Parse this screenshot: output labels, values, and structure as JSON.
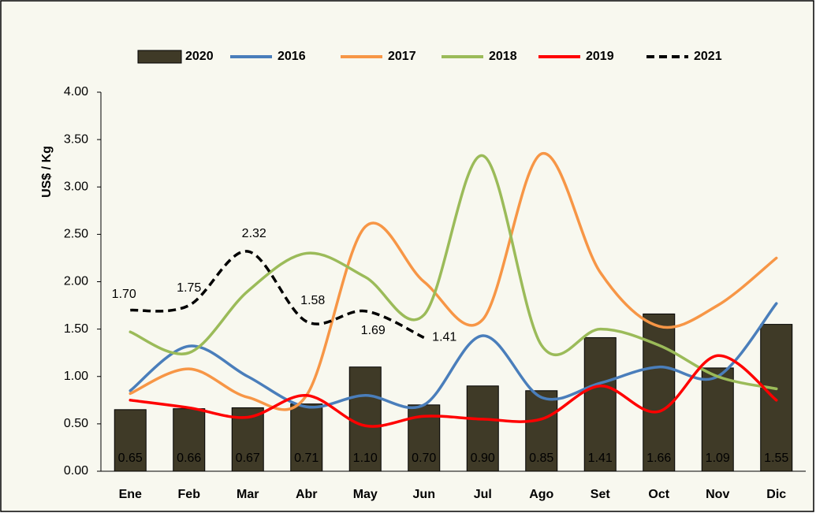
{
  "chart_data": {
    "type": "combo",
    "ylabel": "US$ / Kg",
    "categories": [
      "Ene",
      "Feb",
      "Mar",
      "Abr",
      "May",
      "Jun",
      "Jul",
      "Ago",
      "Set",
      "Oct",
      "Nov",
      "Dic"
    ],
    "series": [
      {
        "name": "2020",
        "type": "bar",
        "color": "#3f3a27",
        "values": [
          0.65,
          0.66,
          0.67,
          0.71,
          1.1,
          0.7,
          0.9,
          0.85,
          1.41,
          1.66,
          1.09,
          1.55
        ],
        "value_labels": [
          "0.65",
          "0.66",
          "0.67",
          "0.71",
          "1.10",
          "0.70",
          "0.90",
          "0.85",
          "1.41",
          "1.66",
          "1.09",
          "1.55"
        ]
      },
      {
        "name": "2016",
        "type": "line",
        "color": "#4a7ebb",
        "values": [
          0.85,
          1.32,
          1.0,
          0.68,
          0.8,
          0.7,
          1.43,
          0.78,
          0.93,
          1.1,
          1.0,
          1.77
        ]
      },
      {
        "name": "2017",
        "type": "line",
        "color": "#f79646",
        "values": [
          0.82,
          1.08,
          0.78,
          0.8,
          2.58,
          2.0,
          1.6,
          3.35,
          2.1,
          1.53,
          1.75,
          2.25
        ]
      },
      {
        "name": "2018",
        "type": "line",
        "color": "#9bbb59",
        "values": [
          1.47,
          1.25,
          1.9,
          2.3,
          2.05,
          1.65,
          3.33,
          1.33,
          1.5,
          1.33,
          1.0,
          0.87
        ]
      },
      {
        "name": "2019",
        "type": "line",
        "color": "#ff0000",
        "values": [
          0.75,
          0.67,
          0.57,
          0.8,
          0.48,
          0.58,
          0.55,
          0.55,
          0.9,
          0.63,
          1.22,
          0.75
        ]
      },
      {
        "name": "2021",
        "type": "line",
        "color": "#000000",
        "dashed": true,
        "values": [
          1.7,
          1.75,
          2.32,
          1.58,
          1.69,
          1.41,
          null,
          null,
          null,
          null,
          null,
          null
        ],
        "value_labels": [
          "1.70",
          "1.75",
          "2.32",
          "1.58",
          "1.69",
          "1.41",
          null,
          null,
          null,
          null,
          null,
          null
        ]
      }
    ],
    "ylim": [
      0,
      4
    ],
    "yticks": [
      {
        "value": 0,
        "label": "0.00"
      },
      {
        "value": 0.5,
        "label": "0.50"
      },
      {
        "value": 1,
        "label": "1.00"
      },
      {
        "value": 1.5,
        "label": "1.50"
      },
      {
        "value": 2,
        "label": "2.00"
      },
      {
        "value": 2.5,
        "label": "2.50"
      },
      {
        "value": 3,
        "label": "3.00"
      },
      {
        "value": 3.5,
        "label": "3.50"
      },
      {
        "value": 4,
        "label": "4.00"
      }
    ],
    "legend": "top"
  }
}
